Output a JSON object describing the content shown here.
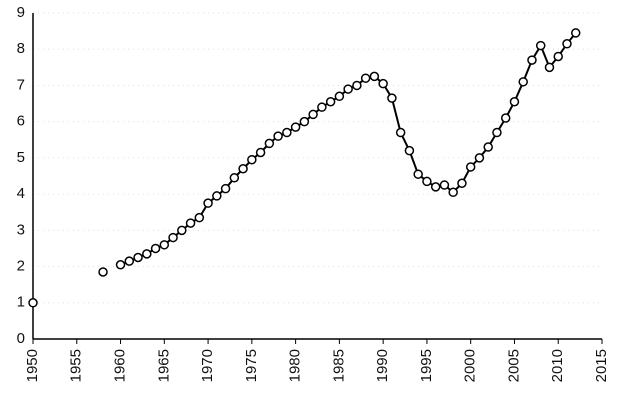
{
  "chart_data": {
    "type": "line",
    "x": [
      1950,
      1951,
      1952,
      1953,
      1954,
      1955,
      1956,
      1957,
      1958,
      1959,
      1960,
      1961,
      1962,
      1963,
      1964,
      1965,
      1966,
      1967,
      1968,
      1969,
      1970,
      1971,
      1972,
      1973,
      1974,
      1975,
      1976,
      1977,
      1978,
      1979,
      1980,
      1981,
      1982,
      1983,
      1984,
      1985,
      1986,
      1987,
      1988,
      1989,
      1990,
      1991,
      1992,
      1993,
      1994,
      1995,
      1996,
      1997,
      1998,
      1999,
      2000,
      2001,
      2002,
      2003,
      2004,
      2005,
      2006,
      2007,
      2008,
      2009,
      2010,
      2011,
      2012
    ],
    "series": [
      {
        "color": "#000000",
        "values": [
          1.0,
          null,
          null,
          null,
          null,
          null,
          null,
          null,
          1.85,
          null,
          2.05,
          2.15,
          2.25,
          2.35,
          2.5,
          2.6,
          2.8,
          3.0,
          3.2,
          3.35,
          3.75,
          3.95,
          4.15,
          4.45,
          4.7,
          4.95,
          5.15,
          5.4,
          5.6,
          5.7,
          5.85,
          6.0,
          6.2,
          6.4,
          6.55,
          6.7,
          6.9,
          7.0,
          7.2,
          7.25,
          7.05,
          6.65,
          5.7,
          5.2,
          4.55,
          4.35,
          4.2,
          4.25,
          4.05,
          4.3,
          4.75,
          5.0,
          5.3,
          5.7,
          6.1,
          6.55,
          7.1,
          7.7,
          8.1,
          7.5,
          7.8,
          8.15,
          8.45
        ]
      }
    ],
    "xlim": [
      1950,
      2015
    ],
    "xticks": [
      1950,
      1955,
      1960,
      1965,
      1970,
      1975,
      1980,
      1985,
      1990,
      1995,
      2000,
      2005,
      2010,
      2015
    ],
    "ylim": [
      0,
      9
    ],
    "yticks": [
      0,
      1,
      2,
      3,
      4,
      5,
      6,
      7,
      8,
      9
    ],
    "grid": true
  }
}
